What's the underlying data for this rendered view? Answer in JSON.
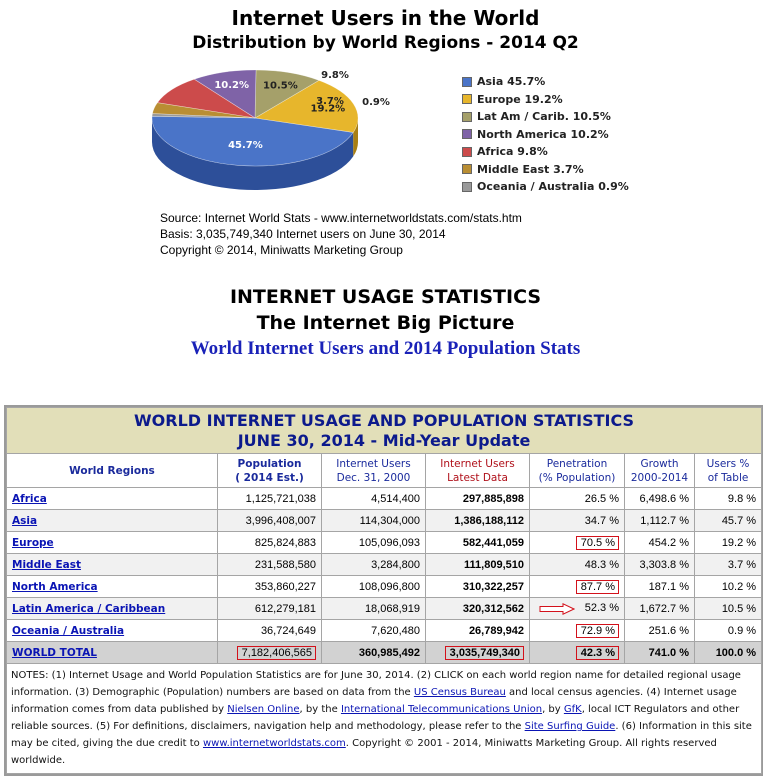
{
  "chart_data": {
    "type": "pie",
    "title": "Internet Users in the World",
    "subtitle": "Distribution by World Regions - 2014 Q2",
    "slices": [
      {
        "label": "Asia",
        "value": 45.7,
        "display": "45.7%",
        "legend": "Asia  45.7%",
        "color": "#4a74c8",
        "dark": "#2d4f99"
      },
      {
        "label": "Europe",
        "value": 19.2,
        "display": "19.2%",
        "legend": "Europe  19.2%",
        "color": "#e7b62c",
        "dark": "#a97f13"
      },
      {
        "label": "Lat Am / Carib.",
        "value": 10.5,
        "display": "10.5%",
        "legend": "Lat Am / Carib.  10.5%",
        "color": "#a5a06a",
        "dark": "#77734a"
      },
      {
        "label": "North America",
        "value": 10.2,
        "display": "10.2%",
        "legend": "North America 10.2%",
        "color": "#7f63a7",
        "dark": "#5a4578"
      },
      {
        "label": "Africa",
        "value": 9.8,
        "display": "9.8%",
        "legend": "Africa  9.8%",
        "color": "#cc4b4b",
        "dark": "#922f2f"
      },
      {
        "label": "Middle East",
        "value": 3.7,
        "display": "3.7%",
        "legend": "Middle East  3.7%",
        "color": "#b98e33",
        "dark": "#86641f"
      },
      {
        "label": "Oceania / Australia",
        "value": 0.9,
        "display": "0.9%",
        "legend": "Oceania / Australia  0.9%",
        "color": "#9a9a9a",
        "dark": "#6d6d6d"
      }
    ]
  },
  "source": {
    "line1": "Source: Internet World Stats -  www.internetworldstats.com/stats.htm",
    "line2": "Basis: 3,035,749,340 Internet users on June 30, 2014",
    "line3": "Copyright © 2014, Miniwatts Marketing Group"
  },
  "stats": {
    "title": "INTERNET USAGE STATISTICS",
    "subtitle": "The Internet Big Picture",
    "link": "World Internet Users and 2014 Population Stats"
  },
  "table": {
    "title1": "WORLD INTERNET USAGE AND POPULATION STATISTICS",
    "title2": "JUNE 30, 2014 - Mid-Year Update",
    "headers": {
      "regions": "World Regions",
      "population1": "Population",
      "population2": "( 2014 Est.)",
      "users2000_1": "Internet Users",
      "users2000_2": "Dec. 31, 2000",
      "users_latest1": "Internet Users",
      "users_latest2": "Latest Data",
      "penetration1": "Penetration",
      "penetration2": "(% Population)",
      "growth1": "Growth",
      "growth2": "2000-2014",
      "share1": "Users %",
      "share2": "of Table"
    },
    "rows": [
      {
        "region": "Africa",
        "population": "1,125,721,038",
        "users2000": "4,514,400",
        "users_latest": "297,885,898",
        "penetration": "26.5 %",
        "growth": "6,498.6 %",
        "share": "9.8 %"
      },
      {
        "region": "Asia",
        "population": "3,996,408,007",
        "users2000": "114,304,000",
        "users_latest": "1,386,188,112",
        "penetration": "34.7 %",
        "growth": "1,112.7 %",
        "share": "45.7 %"
      },
      {
        "region": "Europe",
        "population": "825,824,883",
        "users2000": "105,096,093",
        "users_latest": "582,441,059",
        "penetration": "70.5 %",
        "growth": "454.2 %",
        "share": "19.2 %"
      },
      {
        "region": "Middle East",
        "population": "231,588,580",
        "users2000": "3,284,800",
        "users_latest": "111,809,510",
        "penetration": "48.3 %",
        "growth": "3,303.8 %",
        "share": "3.7 %"
      },
      {
        "region": "North America",
        "population": "353,860,227",
        "users2000": "108,096,800",
        "users_latest": "310,322,257",
        "penetration": "87.7 %",
        "growth": "187.1 %",
        "share": "10.2 %"
      },
      {
        "region": "Latin America / Caribbean",
        "population": "612,279,181",
        "users2000": "18,068,919",
        "users_latest": "320,312,562",
        "penetration": "52.3 %",
        "growth": "1,672.7 %",
        "share": "10.5 %"
      },
      {
        "region": "Oceania / Australia",
        "population": "36,724,649",
        "users2000": "7,620,480",
        "users_latest": "26,789,942",
        "penetration": "72.9 %",
        "growth": "251.6 %",
        "share": "0.9 %"
      }
    ],
    "total": {
      "region": "WORLD TOTAL",
      "population": "7,182,406,565",
      "users2000": "360,985,492",
      "users_latest": "3,035,749,340",
      "penetration": "42.3 %",
      "growth": "741.0 %",
      "share": "100.0 %"
    },
    "notes": {
      "p1": "NOTES: (1) Internet Usage and World Population Statistics are for June 30, 2014. (2) CLICK on each world region name for detailed regional usage information. (3) Demographic (Population) numbers are based on data from the ",
      "l1": "US Census Bureau",
      "p2": " and local census agencies. (4) Internet usage information comes from data published by ",
      "l2": "Nielsen Online",
      "p3": ", by the ",
      "l3": "International Telecommunications Union",
      "p4": ", by ",
      "l4": "GfK",
      "p5": ", local ICT Regulators and other reliable sources. (5) For definitions, disclaimers, navigation help and methodology, please refer to the ",
      "l5": "Site Surfing Guide",
      "p6": ". (6) Information in this site may be cited, giving the due credit to ",
      "l6": "www.internetworldstats.com",
      "p7": ". Copyright © 2001 - 2014, Miniwatts Marketing Group. All rights reserved worldwide."
    }
  }
}
